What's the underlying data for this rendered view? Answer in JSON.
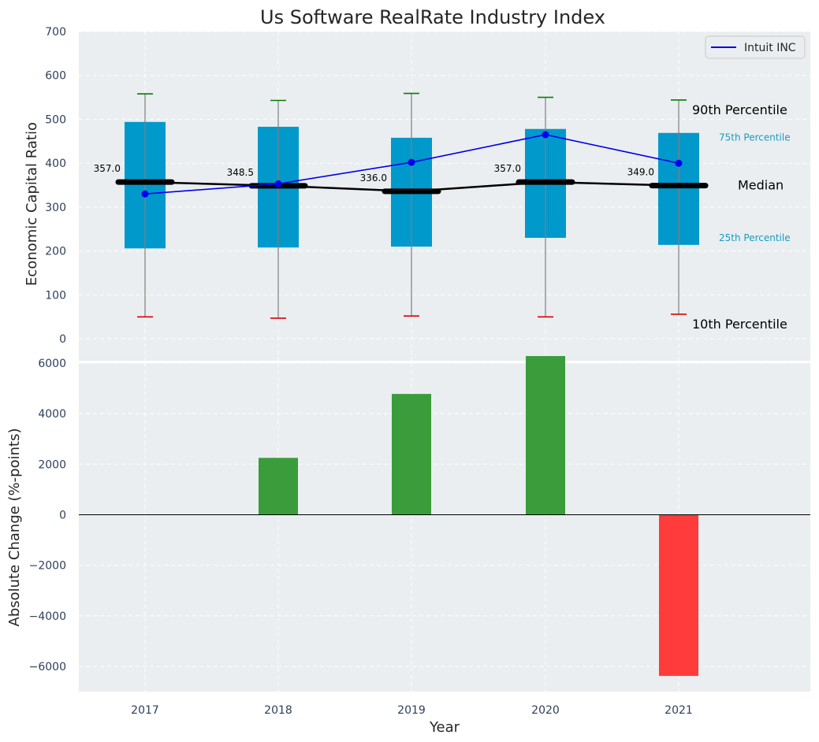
{
  "title": "Us Software RealRate Industry Index",
  "colors": {
    "background": "#eaeef0",
    "box": "#0099cc",
    "whisker": "#808080",
    "p90_cap": "#008000",
    "p10_cap": "#dd0000",
    "median": "#000000",
    "company": "#0000ee",
    "positive_bar": "#3a9c3a",
    "negative_bar": "#ff3b3b",
    "percentile_label_small": "#1a9bbf"
  },
  "chart_data": [
    {
      "type": "box",
      "ylabel": "Economic Capital Ratio",
      "xlabel": "",
      "ylim": [
        -50,
        700
      ],
      "yticks": [
        0,
        100,
        200,
        300,
        400,
        500,
        600,
        700
      ],
      "categories": [
        "2017",
        "2018",
        "2019",
        "2020",
        "2021"
      ],
      "p10": [
        50,
        47,
        52,
        50,
        56
      ],
      "p25": [
        206,
        208,
        210,
        230,
        214
      ],
      "median": [
        357.0,
        348.5,
        336.0,
        357.0,
        349.0
      ],
      "median_labels": [
        "357.0",
        "348.5",
        "336.0",
        "357.0",
        "349.0"
      ],
      "p75": [
        494,
        483,
        458,
        478,
        469
      ],
      "p90": [
        558,
        543,
        559,
        550,
        544
      ],
      "series": [
        {
          "name": "Intuit INC",
          "values": [
            330,
            353,
            402,
            465,
            400
          ]
        }
      ],
      "legend_position": "top-right",
      "grid": true,
      "annotations": {
        "p90": "90th Percentile",
        "p75": "75th Percentile",
        "median": "Median",
        "p25": "25th Percentile",
        "p10": "10th Percentile"
      }
    },
    {
      "type": "bar",
      "ylabel": "Absolute Change (%-points)",
      "xlabel": "Year",
      "ylim": [
        -7000,
        6000
      ],
      "yticks": [
        -6000,
        -4000,
        -2000,
        0,
        2000,
        4000,
        6000
      ],
      "ytick_labels": [
        "−6000",
        "−4000",
        "−2000",
        "0",
        "2000",
        "4000",
        "6000"
      ],
      "categories": [
        "2017",
        "2018",
        "2019",
        "2020",
        "2021"
      ],
      "values": [
        0,
        2250,
        4780,
        6280,
        -6380
      ],
      "grid": true
    }
  ]
}
